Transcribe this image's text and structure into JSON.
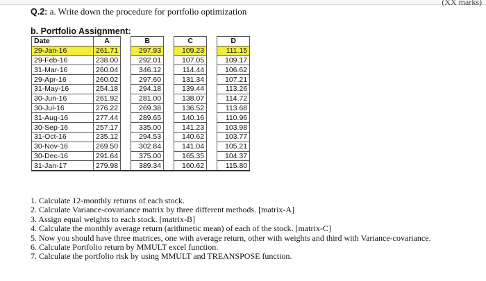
{
  "corner_text": "(XX marks)",
  "question": {
    "number": "Q.2:",
    "text": "a. Write down the procedure for portfolio optimization"
  },
  "section_b_title": "b. Portfolio Assignment:",
  "table": {
    "headers": [
      "Date",
      "A",
      "B",
      "C",
      "D"
    ],
    "rows": [
      [
        "29-Jan-16",
        "261.71",
        "297.93",
        "109.23",
        "111.15"
      ],
      [
        "29-Feb-16",
        "238.00",
        "292.01",
        "107.05",
        "109.17"
      ],
      [
        "31-Mar-16",
        "260.04",
        "346.12",
        "114.44",
        "106.62"
      ],
      [
        "29-Apr-16",
        "260.02",
        "297.60",
        "131.34",
        "107.21"
      ],
      [
        "31-May-16",
        "254.18",
        "294.18",
        "139.44",
        "113.26"
      ],
      [
        "30-Jun-16",
        "261.92",
        "281.00",
        "138.07",
        "114.72"
      ],
      [
        "30-Jul-16",
        "276.22",
        "269.38",
        "136.52",
        "113.68"
      ],
      [
        "31-Aug-16",
        "277.44",
        "289.65",
        "140.16",
        "110.96"
      ],
      [
        "30-Sep-16",
        "257.17",
        "335.00",
        "141.23",
        "103.98"
      ],
      [
        "31-Oct-16",
        "235.12",
        "294.53",
        "140.62",
        "103.77"
      ],
      [
        "30-Nov-16",
        "269.50",
        "302.84",
        "141.04",
        "105.21"
      ],
      [
        "30-Dec-16",
        "291.64",
        "375.00",
        "165.35",
        "104.37"
      ],
      [
        "31-Jan-17",
        "279.98",
        "389.34",
        "160.62",
        "115.80"
      ]
    ],
    "highlight_color": "#f3ee3a"
  },
  "instructions": [
    "1. Calculate 12-monthly returns of each stock.",
    "2. Calculate Variance-covariance matrix by three different methods. [matrix-A]",
    "3. Assign equal weights to each stock. [matrix-B]",
    "4. Calculate the monthly average return (arithmetic mean) of each of the stock. [matrix-C]",
    "5. Now you should have three matrices, one with average return, other with weights and third with Variance-covariance.",
    "6. Calculate Portfolio return by MMULT excel function.",
    "7. Calculate the portfolio risk by using MMULT and TREANSPOSE function."
  ]
}
